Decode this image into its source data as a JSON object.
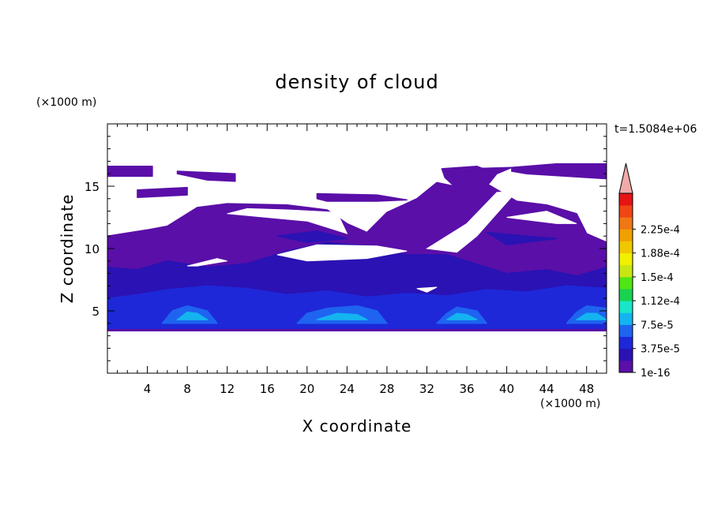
{
  "chart_data": {
    "type": "heatmap",
    "title": "density of cloud",
    "xlabel": "X coordinate",
    "ylabel": "Z coordinate",
    "x_unit": "(×1000 m)",
    "y_unit": "(×1000 m)",
    "time_label": "t=1.5084e+06",
    "xlim": [
      0,
      50
    ],
    "ylim": [
      0,
      20
    ],
    "x_ticks": [
      "4",
      "8",
      "12",
      "16",
      "20",
      "24",
      "28",
      "32",
      "36",
      "40",
      "44",
      "48"
    ],
    "y_ticks": [
      "5",
      "10",
      "15"
    ],
    "colorbar": {
      "labels": [
        "1e-16",
        "3.75e-5",
        "7.5e-5",
        "1.12e-4",
        "1.5e-4",
        "1.88e-4",
        "2.25e-4"
      ],
      "colors": [
        "#5a0fa8",
        "#2a12b4",
        "#1e28d8",
        "#1e64f0",
        "#14b4f0",
        "#19e6c8",
        "#19d250",
        "#50e614",
        "#c8e614",
        "#f0f000",
        "#f0c800",
        "#f0a000",
        "#f07814",
        "#f04614",
        "#e61414"
      ],
      "extend_color": "#f0aaaa"
    },
    "layers": [
      {
        "level": 0,
        "color": "#5a0fa8",
        "regions": [
          [
            [
              0,
              3.4
            ],
            [
              50,
              3.4
            ],
            [
              50,
              10.5
            ],
            [
              48,
              11.2
            ],
            [
              47,
              12.8
            ],
            [
              44,
              13.5
            ],
            [
              41,
              13.8
            ],
            [
              38,
              15.2
            ],
            [
              36,
              14.8
            ],
            [
              33,
              15.3
            ],
            [
              31,
              14.0
            ],
            [
              28,
              12.9
            ],
            [
              26,
              11.3
            ],
            [
              24,
              12.0
            ],
            [
              22,
              13.1
            ],
            [
              18,
              13.5
            ],
            [
              12,
              13.6
            ],
            [
              9,
              13.3
            ],
            [
              6,
              11.8
            ],
            [
              4,
              11.5
            ],
            [
              0,
              11.0
            ]
          ],
          [
            [
              0,
              15.8
            ],
            [
              4.5,
              15.8
            ],
            [
              4.5,
              16.6
            ],
            [
              0,
              16.6
            ]
          ],
          [
            [
              7,
              16.2
            ],
            [
              12.8,
              16.0
            ],
            [
              12.8,
              15.4
            ],
            [
              10,
              15.5
            ],
            [
              7,
              16.0
            ]
          ],
          [
            [
              3,
              14.7
            ],
            [
              8,
              14.9
            ],
            [
              8,
              14.3
            ],
            [
              3,
              14.1
            ]
          ],
          [
            [
              21,
              14.4
            ],
            [
              27,
              14.3
            ],
            [
              30,
              13.9
            ],
            [
              27,
              13.8
            ],
            [
              22,
              13.8
            ],
            [
              21,
              14.0
            ]
          ],
          [
            [
              40.5,
              16.5
            ],
            [
              45,
              16.8
            ],
            [
              50,
              16.8
            ],
            [
              50,
              15.6
            ],
            [
              42,
              16.0
            ],
            [
              40.5,
              16.2
            ]
          ],
          [
            [
              40.5,
              16.5
            ],
            [
              36,
              16.4
            ],
            [
              39,
              16.0
            ]
          ],
          [
            [
              33.5,
              16.4
            ],
            [
              37,
              16.6
            ],
            [
              39,
              16.0
            ],
            [
              38,
              15.0
            ],
            [
              35,
              14.8
            ],
            [
              33.8,
              15.7
            ]
          ],
          [
            [
              36,
              13.8
            ],
            [
              38,
              13.8
            ],
            [
              38,
              13.2
            ],
            [
              36,
              13.2
            ]
          ]
        ]
      },
      {
        "level": 1,
        "color": "#2a12b4",
        "regions": [
          [
            [
              0,
              4.0
            ],
            [
              50,
              4.0
            ],
            [
              50,
              8.5
            ],
            [
              47,
              7.8
            ],
            [
              44,
              8.3
            ],
            [
              40,
              8.0
            ],
            [
              36,
              9.0
            ],
            [
              34,
              9.5
            ],
            [
              30,
              9.5
            ],
            [
              26,
              10.2
            ],
            [
              22,
              10.5
            ],
            [
              18,
              9.8
            ],
            [
              14,
              8.8
            ],
            [
              10,
              8.5
            ],
            [
              6,
              9.0
            ],
            [
              3,
              8.3
            ],
            [
              0,
              8.5
            ]
          ],
          [
            [
              17,
              11.0
            ],
            [
              21,
              11.4
            ],
            [
              24,
              10.8
            ],
            [
              20,
              10.5
            ]
          ],
          [
            [
              38,
              11.3
            ],
            [
              42,
              11.0
            ],
            [
              45,
              10.8
            ],
            [
              40,
              10.3
            ]
          ]
        ]
      },
      {
        "level": 2,
        "color": "#1e28d8",
        "regions": [
          [
            [
              0,
              3.6
            ],
            [
              50,
              3.6
            ],
            [
              50,
              6.8
            ],
            [
              46,
              7.0
            ],
            [
              42,
              6.5
            ],
            [
              38,
              6.7
            ],
            [
              34,
              6.2
            ],
            [
              30,
              6.4
            ],
            [
              26,
              6.1
            ],
            [
              22,
              6.6
            ],
            [
              18,
              6.3
            ],
            [
              14,
              6.8
            ],
            [
              10,
              7.0
            ],
            [
              6,
              6.7
            ],
            [
              3,
              6.3
            ],
            [
              0,
              6.0
            ]
          ]
        ]
      },
      {
        "level": 3,
        "color": "#1e64f0",
        "regions": [
          [
            [
              5.5,
              4.0
            ],
            [
              11,
              4.0
            ],
            [
              10,
              5.0
            ],
            [
              8,
              5.4
            ],
            [
              6.5,
              5.0
            ]
          ],
          [
            [
              19,
              4.0
            ],
            [
              28,
              4.0
            ],
            [
              27,
              5.0
            ],
            [
              25,
              5.4
            ],
            [
              22,
              5.2
            ],
            [
              20,
              4.8
            ]
          ],
          [
            [
              33,
              4.0
            ],
            [
              38,
              4.0
            ],
            [
              37,
              5.0
            ],
            [
              35,
              5.3
            ],
            [
              34,
              4.8
            ]
          ],
          [
            [
              46,
              4.0
            ],
            [
              50,
              4.0
            ],
            [
              50,
              5.2
            ],
            [
              48,
              5.4
            ],
            [
              47,
              4.9
            ]
          ]
        ]
      },
      {
        "level": 4,
        "color": "#14b4f0",
        "regions": [
          [
            [
              7,
              4.3
            ],
            [
              10,
              4.3
            ],
            [
              9,
              4.8
            ],
            [
              8,
              4.9
            ]
          ],
          [
            [
              21,
              4.3
            ],
            [
              26,
              4.3
            ],
            [
              25,
              4.7
            ],
            [
              23,
              4.8
            ]
          ],
          [
            [
              34,
              4.3
            ],
            [
              37,
              4.3
            ],
            [
              36,
              4.7
            ],
            [
              35,
              4.8
            ]
          ],
          [
            [
              47,
              4.3
            ],
            [
              50,
              4.3
            ],
            [
              49,
              4.8
            ],
            [
              48,
              4.8
            ]
          ]
        ]
      }
    ],
    "clear_regions": [
      [
        [
          12,
          12.8
        ],
        [
          20,
          12.2
        ],
        [
          24,
          11.2
        ],
        [
          23,
          12.9
        ],
        [
          18,
          13.1
        ],
        [
          14,
          13.2
        ]
      ],
      [
        [
          17,
          9.5
        ],
        [
          21,
          10.3
        ],
        [
          27,
          10.2
        ],
        [
          30,
          9.8
        ],
        [
          26,
          9.2
        ],
        [
          20,
          9.0
        ]
      ],
      [
        [
          8,
          8.6
        ],
        [
          11,
          9.2
        ],
        [
          12,
          9.0
        ],
        [
          9,
          8.6
        ]
      ],
      [
        [
          32,
          10.0
        ],
        [
          36,
          12.0
        ],
        [
          39,
          14.5
        ],
        [
          41,
          14.6
        ],
        [
          37,
          11.0
        ],
        [
          35,
          9.7
        ]
      ],
      [
        [
          40,
          12.5
        ],
        [
          44,
          13.0
        ],
        [
          47,
          12.0
        ],
        [
          45,
          12.0
        ]
      ],
      [
        [
          31,
          6.8
        ],
        [
          33,
          6.9
        ],
        [
          32,
          6.5
        ]
      ]
    ]
  }
}
